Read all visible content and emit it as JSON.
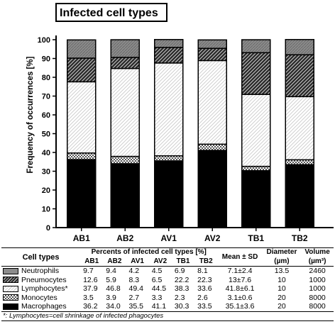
{
  "chart_data": {
    "type": "bar",
    "stacked": true,
    "title": "Infected cell types",
    "ylabel": "Frequency of occurrences [%]",
    "ylim": [
      0,
      100
    ],
    "yticks": [
      0,
      10,
      20,
      30,
      40,
      50,
      60,
      70,
      80,
      90,
      100
    ],
    "categories": [
      "AB1",
      "AB2",
      "AV1",
      "AV2",
      "TB1",
      "TB2"
    ],
    "series": [
      {
        "name": "Macrophages",
        "values": [
          36.2,
          34.0,
          35.5,
          41.1,
          30.3,
          33.5
        ]
      },
      {
        "name": "Monocytes",
        "values": [
          3.5,
          3.9,
          2.7,
          3.3,
          2.3,
          2.6
        ]
      },
      {
        "name": "Lymphocytes*",
        "values": [
          37.9,
          46.8,
          49.4,
          44.5,
          38.3,
          33.6
        ]
      },
      {
        "name": "Pneumocytes",
        "values": [
          12.6,
          5.9,
          8.3,
          6.5,
          22.2,
          22.3
        ]
      },
      {
        "name": "Neutrophils",
        "values": [
          9.7,
          9.4,
          4.2,
          4.5,
          6.9,
          8.1
        ]
      }
    ],
    "grid": false
  },
  "table": {
    "col_header": "Cell types",
    "percent_header": "Percents of infected cell types [%]",
    "mean_header": "Mean ± SD",
    "diameter_header": "Diameter",
    "diameter_unit": "(µm)",
    "volume_header": "Volume",
    "volume_unit": "(µm³)",
    "sub_headers": [
      "AB1",
      "AB2",
      "AV1",
      "AV2",
      "TB1",
      "TB2"
    ],
    "rows": [
      {
        "name": "Neutrophils",
        "values": [
          "9.7",
          "9.4",
          "4.2",
          "4.5",
          "6.9",
          "8.1"
        ],
        "mean": "7.1±2.4",
        "diameter": "13.5",
        "volume": "2460"
      },
      {
        "name": "Pneumocytes",
        "values": [
          "12.6",
          "5.9",
          "8.3",
          "6.5",
          "22.2",
          "22.3"
        ],
        "mean": "13±7.6",
        "diameter": "10",
        "volume": "1000"
      },
      {
        "name": "Lymphocytes*",
        "values": [
          "37.9",
          "46.8",
          "49.4",
          "44.5",
          "38.3",
          "33.6"
        ],
        "mean": "41.8±6.1",
        "diameter": "10",
        "volume": "1000"
      },
      {
        "name": "Monocytes",
        "values": [
          "3.5",
          "3.9",
          "2.7",
          "3.3",
          "2.3",
          "2.6"
        ],
        "mean": "3.1±0.6",
        "diameter": "20",
        "volume": "8000"
      },
      {
        "name": "Macrophages",
        "values": [
          "36.2",
          "34.0",
          "35.5",
          "41.1",
          "30.3",
          "33.5"
        ],
        "mean": "35.1±3.6",
        "diameter": "20",
        "volume": "8000"
      }
    ],
    "footnote": "*: Lymphocytes=cell shrinkage of infected phagocytes"
  }
}
